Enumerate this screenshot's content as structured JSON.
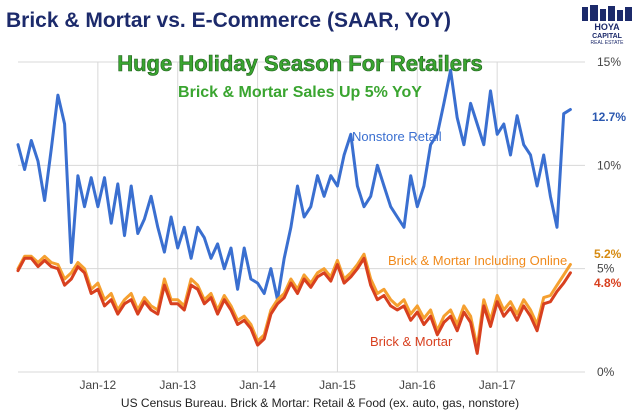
{
  "chart_data": {
    "type": "line",
    "title": "Brick & Mortar vs. E-Commerce (SAAR, YoY)",
    "headline": "Huge Holiday Season For Retailers",
    "subheadline": "Brick & Mortar Sales Up 5% YoY",
    "source": "US Census Bureau. Brick & Mortar: Retail & Food (ex. auto, gas, nonstore)",
    "xlabel": "",
    "ylabel": "",
    "ylim": [
      0,
      15
    ],
    "xlim": [
      2011.0,
      2018.1
    ],
    "grid": true,
    "x_ticks": [
      {
        "x": 2012,
        "label": "Jan-12"
      },
      {
        "x": 2013,
        "label": "Jan-13"
      },
      {
        "x": 2014,
        "label": "Jan-14"
      },
      {
        "x": 2015,
        "label": "Jan-15"
      },
      {
        "x": 2016,
        "label": "Jan-16"
      },
      {
        "x": 2017,
        "label": "Jan-17"
      }
    ],
    "y_ticks": [
      {
        "y": 0,
        "label": "0%"
      },
      {
        "y": 5,
        "label": "5%"
      },
      {
        "y": 10,
        "label": "10%"
      },
      {
        "y": 15,
        "label": "15%"
      }
    ],
    "series": [
      {
        "name": "Nonstore Retail",
        "color": "#3a6fd0",
        "end_label": "12.7%",
        "points": [
          [
            2011.0,
            11.0
          ],
          [
            2011.083,
            9.8
          ],
          [
            2011.167,
            11.2
          ],
          [
            2011.25,
            10.2
          ],
          [
            2011.333,
            8.3
          ],
          [
            2011.417,
            10.8
          ],
          [
            2011.5,
            13.4
          ],
          [
            2011.583,
            12.0
          ],
          [
            2011.667,
            5.3
          ],
          [
            2011.75,
            9.5
          ],
          [
            2011.833,
            8.0
          ],
          [
            2011.917,
            9.4
          ],
          [
            2012.0,
            8.0
          ],
          [
            2012.083,
            9.4
          ],
          [
            2012.167,
            7.2
          ],
          [
            2012.25,
            9.1
          ],
          [
            2012.333,
            6.6
          ],
          [
            2012.417,
            9.0
          ],
          [
            2012.5,
            6.7
          ],
          [
            2012.583,
            7.4
          ],
          [
            2012.667,
            8.5
          ],
          [
            2012.75,
            7.0
          ],
          [
            2012.833,
            5.8
          ],
          [
            2012.917,
            7.5
          ],
          [
            2013.0,
            6.0
          ],
          [
            2013.083,
            7.0
          ],
          [
            2013.167,
            5.5
          ],
          [
            2013.25,
            7.0
          ],
          [
            2013.333,
            6.5
          ],
          [
            2013.417,
            5.5
          ],
          [
            2013.5,
            6.2
          ],
          [
            2013.583,
            5.0
          ],
          [
            2013.667,
            6.0
          ],
          [
            2013.75,
            4.0
          ],
          [
            2013.833,
            6.0
          ],
          [
            2013.917,
            4.5
          ],
          [
            2014.0,
            4.3
          ],
          [
            2014.083,
            3.8
          ],
          [
            2014.167,
            5.0
          ],
          [
            2014.25,
            3.5
          ],
          [
            2014.333,
            5.5
          ],
          [
            2014.417,
            7.0
          ],
          [
            2014.5,
            9.0
          ],
          [
            2014.583,
            7.5
          ],
          [
            2014.667,
            8.0
          ],
          [
            2014.75,
            9.5
          ],
          [
            2014.833,
            8.5
          ],
          [
            2014.917,
            9.5
          ],
          [
            2015.0,
            9.0
          ],
          [
            2015.083,
            10.5
          ],
          [
            2015.167,
            11.5
          ],
          [
            2015.25,
            9.0
          ],
          [
            2015.333,
            8.0
          ],
          [
            2015.417,
            8.5
          ],
          [
            2015.5,
            10.0
          ],
          [
            2015.583,
            9.0
          ],
          [
            2015.667,
            8.0
          ],
          [
            2015.75,
            7.5
          ],
          [
            2015.833,
            7.0
          ],
          [
            2015.917,
            9.5
          ],
          [
            2016.0,
            8.0
          ],
          [
            2016.083,
            9.0
          ],
          [
            2016.167,
            11.0
          ],
          [
            2016.25,
            11.5
          ],
          [
            2016.333,
            13.0
          ],
          [
            2016.417,
            14.6
          ],
          [
            2016.5,
            12.3
          ],
          [
            2016.583,
            11.0
          ],
          [
            2016.667,
            13.0
          ],
          [
            2016.75,
            12.0
          ],
          [
            2016.833,
            11.0
          ],
          [
            2016.917,
            13.6
          ],
          [
            2017.0,
            11.5
          ],
          [
            2017.083,
            12.0
          ],
          [
            2017.167,
            10.5
          ],
          [
            2017.25,
            12.4
          ],
          [
            2017.333,
            11.0
          ],
          [
            2017.417,
            10.5
          ],
          [
            2017.5,
            9.0
          ],
          [
            2017.583,
            10.5
          ],
          [
            2017.667,
            8.5
          ],
          [
            2017.75,
            7.0
          ],
          [
            2017.833,
            12.5
          ],
          [
            2017.917,
            12.7
          ]
        ]
      },
      {
        "name": "Brick & Mortar Including Online",
        "color": "#f5a030",
        "end_label": "5.2%",
        "points": [
          [
            2011.0,
            5.0
          ],
          [
            2011.083,
            5.6
          ],
          [
            2011.167,
            5.6
          ],
          [
            2011.25,
            5.3
          ],
          [
            2011.333,
            5.6
          ],
          [
            2011.417,
            5.3
          ],
          [
            2011.5,
            5.2
          ],
          [
            2011.583,
            4.5
          ],
          [
            2011.667,
            4.8
          ],
          [
            2011.75,
            5.3
          ],
          [
            2011.833,
            5.0
          ],
          [
            2011.917,
            4.0
          ],
          [
            2012.0,
            4.3
          ],
          [
            2012.083,
            3.5
          ],
          [
            2012.167,
            3.8
          ],
          [
            2012.25,
            3.0
          ],
          [
            2012.333,
            3.5
          ],
          [
            2012.417,
            3.8
          ],
          [
            2012.5,
            3.0
          ],
          [
            2012.583,
            3.6
          ],
          [
            2012.667,
            3.2
          ],
          [
            2012.75,
            3.0
          ],
          [
            2012.833,
            4.5
          ],
          [
            2012.917,
            3.5
          ],
          [
            2013.0,
            3.5
          ],
          [
            2013.083,
            3.2
          ],
          [
            2013.167,
            4.5
          ],
          [
            2013.25,
            4.2
          ],
          [
            2013.333,
            3.5
          ],
          [
            2013.417,
            3.8
          ],
          [
            2013.5,
            3.0
          ],
          [
            2013.583,
            3.7
          ],
          [
            2013.667,
            3.2
          ],
          [
            2013.75,
            2.5
          ],
          [
            2013.833,
            2.7
          ],
          [
            2013.917,
            2.3
          ],
          [
            2014.0,
            1.5
          ],
          [
            2014.083,
            1.8
          ],
          [
            2014.167,
            3.0
          ],
          [
            2014.25,
            3.5
          ],
          [
            2014.333,
            3.8
          ],
          [
            2014.417,
            4.5
          ],
          [
            2014.5,
            4.0
          ],
          [
            2014.583,
            4.7
          ],
          [
            2014.667,
            4.3
          ],
          [
            2014.75,
            4.8
          ],
          [
            2014.833,
            5.0
          ],
          [
            2014.917,
            4.6
          ],
          [
            2015.0,
            5.4
          ],
          [
            2015.083,
            4.5
          ],
          [
            2015.167,
            4.8
          ],
          [
            2015.25,
            5.2
          ],
          [
            2015.333,
            5.7
          ],
          [
            2015.417,
            4.5
          ],
          [
            2015.5,
            3.8
          ],
          [
            2015.583,
            4.0
          ],
          [
            2015.667,
            3.5
          ],
          [
            2015.75,
            3.2
          ],
          [
            2015.833,
            3.5
          ],
          [
            2015.917,
            2.8
          ],
          [
            2016.0,
            3.2
          ],
          [
            2016.083,
            2.6
          ],
          [
            2016.167,
            3.0
          ],
          [
            2016.25,
            2.0
          ],
          [
            2016.333,
            2.7
          ],
          [
            2016.417,
            3.0
          ],
          [
            2016.5,
            2.3
          ],
          [
            2016.583,
            3.2
          ],
          [
            2016.667,
            2.7
          ],
          [
            2016.75,
            1.2
          ],
          [
            2016.833,
            3.5
          ],
          [
            2016.917,
            2.5
          ],
          [
            2017.0,
            3.7
          ],
          [
            2017.083,
            3.0
          ],
          [
            2017.167,
            3.4
          ],
          [
            2017.25,
            2.8
          ],
          [
            2017.333,
            3.5
          ],
          [
            2017.417,
            3.0
          ],
          [
            2017.5,
            2.3
          ],
          [
            2017.583,
            3.6
          ],
          [
            2017.667,
            3.7
          ],
          [
            2017.75,
            4.2
          ],
          [
            2017.833,
            4.7
          ],
          [
            2017.917,
            5.2
          ]
        ]
      },
      {
        "name": "Brick & Mortar",
        "color": "#d8401f",
        "end_label": "4.8%",
        "points": [
          [
            2011.0,
            4.9
          ],
          [
            2011.083,
            5.5
          ],
          [
            2011.167,
            5.5
          ],
          [
            2011.25,
            5.1
          ],
          [
            2011.333,
            5.4
          ],
          [
            2011.417,
            5.1
          ],
          [
            2011.5,
            5.0
          ],
          [
            2011.583,
            4.2
          ],
          [
            2011.667,
            4.5
          ],
          [
            2011.75,
            5.1
          ],
          [
            2011.833,
            4.8
          ],
          [
            2011.917,
            3.8
          ],
          [
            2012.0,
            4.0
          ],
          [
            2012.083,
            3.2
          ],
          [
            2012.167,
            3.5
          ],
          [
            2012.25,
            2.8
          ],
          [
            2012.333,
            3.3
          ],
          [
            2012.417,
            3.5
          ],
          [
            2012.5,
            2.8
          ],
          [
            2012.583,
            3.4
          ],
          [
            2012.667,
            3.0
          ],
          [
            2012.75,
            2.8
          ],
          [
            2012.833,
            4.2
          ],
          [
            2012.917,
            3.3
          ],
          [
            2013.0,
            3.3
          ],
          [
            2013.083,
            3.0
          ],
          [
            2013.167,
            4.2
          ],
          [
            2013.25,
            4.0
          ],
          [
            2013.333,
            3.3
          ],
          [
            2013.417,
            3.6
          ],
          [
            2013.5,
            2.8
          ],
          [
            2013.583,
            3.5
          ],
          [
            2013.667,
            3.0
          ],
          [
            2013.75,
            2.3
          ],
          [
            2013.833,
            2.5
          ],
          [
            2013.917,
            2.1
          ],
          [
            2014.0,
            1.3
          ],
          [
            2014.083,
            1.6
          ],
          [
            2014.167,
            2.8
          ],
          [
            2014.25,
            3.3
          ],
          [
            2014.333,
            3.6
          ],
          [
            2014.417,
            4.3
          ],
          [
            2014.5,
            3.8
          ],
          [
            2014.583,
            4.5
          ],
          [
            2014.667,
            4.1
          ],
          [
            2014.75,
            4.6
          ],
          [
            2014.833,
            4.8
          ],
          [
            2014.917,
            4.4
          ],
          [
            2015.0,
            5.2
          ],
          [
            2015.083,
            4.3
          ],
          [
            2015.167,
            4.6
          ],
          [
            2015.25,
            5.0
          ],
          [
            2015.333,
            5.5
          ],
          [
            2015.417,
            4.2
          ],
          [
            2015.5,
            3.5
          ],
          [
            2015.583,
            3.7
          ],
          [
            2015.667,
            3.2
          ],
          [
            2015.75,
            3.0
          ],
          [
            2015.833,
            3.2
          ],
          [
            2015.917,
            2.5
          ],
          [
            2016.0,
            2.9
          ],
          [
            2016.083,
            2.3
          ],
          [
            2016.167,
            2.7
          ],
          [
            2016.25,
            1.8
          ],
          [
            2016.333,
            2.4
          ],
          [
            2016.417,
            2.7
          ],
          [
            2016.5,
            2.0
          ],
          [
            2016.583,
            2.9
          ],
          [
            2016.667,
            2.4
          ],
          [
            2016.75,
            0.9
          ],
          [
            2016.833,
            3.2
          ],
          [
            2016.917,
            2.2
          ],
          [
            2017.0,
            3.4
          ],
          [
            2017.083,
            2.7
          ],
          [
            2017.167,
            3.1
          ],
          [
            2017.25,
            2.5
          ],
          [
            2017.333,
            3.2
          ],
          [
            2017.417,
            2.7
          ],
          [
            2017.5,
            2.0
          ],
          [
            2017.583,
            3.3
          ],
          [
            2017.667,
            3.4
          ],
          [
            2017.75,
            3.9
          ],
          [
            2017.833,
            4.3
          ],
          [
            2017.917,
            4.8
          ]
        ]
      }
    ],
    "series_labels": [
      {
        "series": "Nonstore Retail",
        "text": "Nonstore Retail",
        "color": "#3a6fd0"
      },
      {
        "series": "Brick & Mortar Including Online",
        "text": "Brick & Mortar Including Online",
        "color": "#f08a1c"
      },
      {
        "series": "Brick & Mortar",
        "text": "Brick & Mortar",
        "color": "#d8401f"
      }
    ]
  },
  "logo": {
    "line1": "HOYA",
    "line2": "CAPITAL",
    "line3": "REAL ESTATE"
  },
  "colors": {
    "title": "#1c2a6b",
    "headline": "#3aa530",
    "headline_outline": "#1d5e1a",
    "subheadline": "#3aa530",
    "grid": "#d8d8d8",
    "axis_text": "#444444",
    "logo_bg": "#1c2a6b"
  }
}
